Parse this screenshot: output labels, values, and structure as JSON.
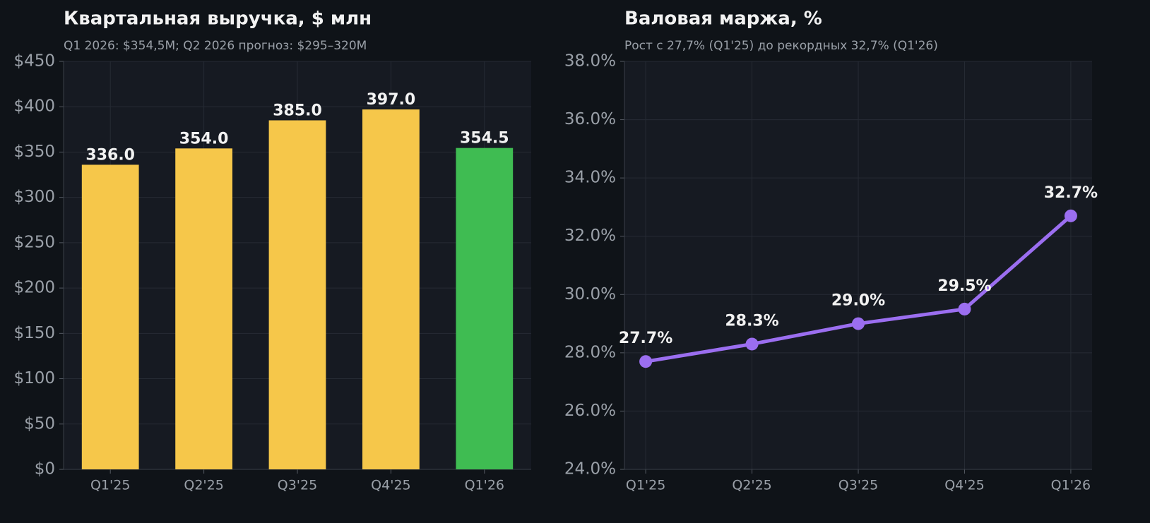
{
  "chart_data": [
    {
      "type": "bar",
      "title": "Квартальная выручка, $ млн",
      "subtitle": "Q1 2026: $354,5M; Q2 2026 прогноз: $295–320M",
      "categories": [
        "Q1'25",
        "Q2'25",
        "Q3'25",
        "Q4'25",
        "Q1'26"
      ],
      "values": [
        336,
        354,
        385,
        397,
        354.5
      ],
      "value_labels": [
        "336.0",
        "354.0",
        "385.0",
        "397.0",
        "354.5"
      ],
      "colors": [
        "#f6c74a",
        "#f6c74a",
        "#f6c74a",
        "#f6c74a",
        "#3fbc52"
      ],
      "ylim": [
        0,
        450
      ],
      "yticks": [
        {
          "value": 0,
          "label": "$0"
        },
        {
          "value": 50,
          "label": "$50"
        },
        {
          "value": 100,
          "label": "$100"
        },
        {
          "value": 150,
          "label": "$150"
        },
        {
          "value": 200,
          "label": "$200"
        },
        {
          "value": 250,
          "label": "$250"
        },
        {
          "value": 300,
          "label": "$300"
        },
        {
          "value": 350,
          "label": "$350"
        },
        {
          "value": 400,
          "label": "$400"
        },
        {
          "value": 450,
          "label": "$450"
        }
      ],
      "grid": true
    },
    {
      "type": "line",
      "title": "Валовая маржа, %",
      "subtitle": "Рост с 27,7% (Q1'25) до рекордных 32,7% (Q1'26)",
      "categories": [
        "Q1'25",
        "Q2'25",
        "Q3'25",
        "Q4'25",
        "Q1'26"
      ],
      "values": [
        27.7,
        28.3,
        29.0,
        29.5,
        32.7
      ],
      "value_labels": [
        "27.7%",
        "28.3%",
        "29.0%",
        "29.5%",
        "32.7%"
      ],
      "color": "#9b6ef0",
      "ylim": [
        24,
        38
      ],
      "yticks": [
        {
          "value": 24,
          "label": "24.0%"
        },
        {
          "value": 26,
          "label": "26.0%"
        },
        {
          "value": 28,
          "label": "28.0%"
        },
        {
          "value": 30,
          "label": "30.0%"
        },
        {
          "value": 32,
          "label": "32.0%"
        },
        {
          "value": 34,
          "label": "34.0%"
        },
        {
          "value": 36,
          "label": "36.0%"
        },
        {
          "value": 38,
          "label": "38.0%"
        }
      ],
      "grid": true
    }
  ]
}
